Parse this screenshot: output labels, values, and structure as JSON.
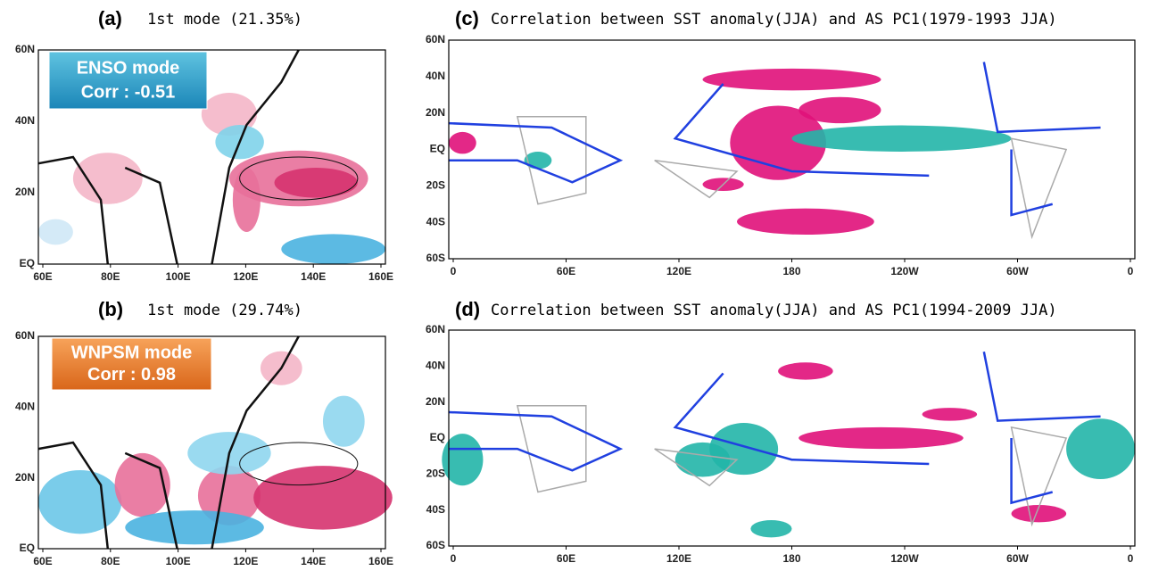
{
  "panels": [
    {
      "label": "(a)",
      "title": "1st mode (21.35%)",
      "box": [
        "ENSO mode",
        "Corr : -0.51"
      ],
      "xticks": [
        "60E",
        "80E",
        "100E",
        "120E",
        "140E",
        "160E"
      ],
      "yticks": [
        "60N",
        "40N",
        "20N",
        "EQ"
      ]
    },
    {
      "label": "(b)",
      "title": "1st mode (29.74%)",
      "box": [
        "WNPSM mode",
        "Corr : 0.98"
      ],
      "xticks": [
        "60E",
        "80E",
        "100E",
        "120E",
        "140E",
        "160E"
      ],
      "yticks": [
        "60N",
        "40N",
        "20N",
        "EQ"
      ]
    },
    {
      "label": "(c)",
      "title": "Correlation between SST anomaly(JJA) and AS PC1(1979-1993 JJA)",
      "xticks": [
        "0",
        "60E",
        "120E",
        "180",
        "120W",
        "60W",
        "0"
      ],
      "yticks": [
        "60N",
        "40N",
        "20N",
        "EQ",
        "20S",
        "40S",
        "60S"
      ]
    },
    {
      "label": "(d)",
      "title": "Correlation between SST anomaly(JJA) and AS PC1(1994-2009 JJA)",
      "xticks": [
        "0",
        "60E",
        "120E",
        "180",
        "120W",
        "60W",
        "0"
      ],
      "yticks": [
        "60N",
        "40N",
        "20N",
        "EQ",
        "20S",
        "40S",
        "60S"
      ]
    }
  ]
}
